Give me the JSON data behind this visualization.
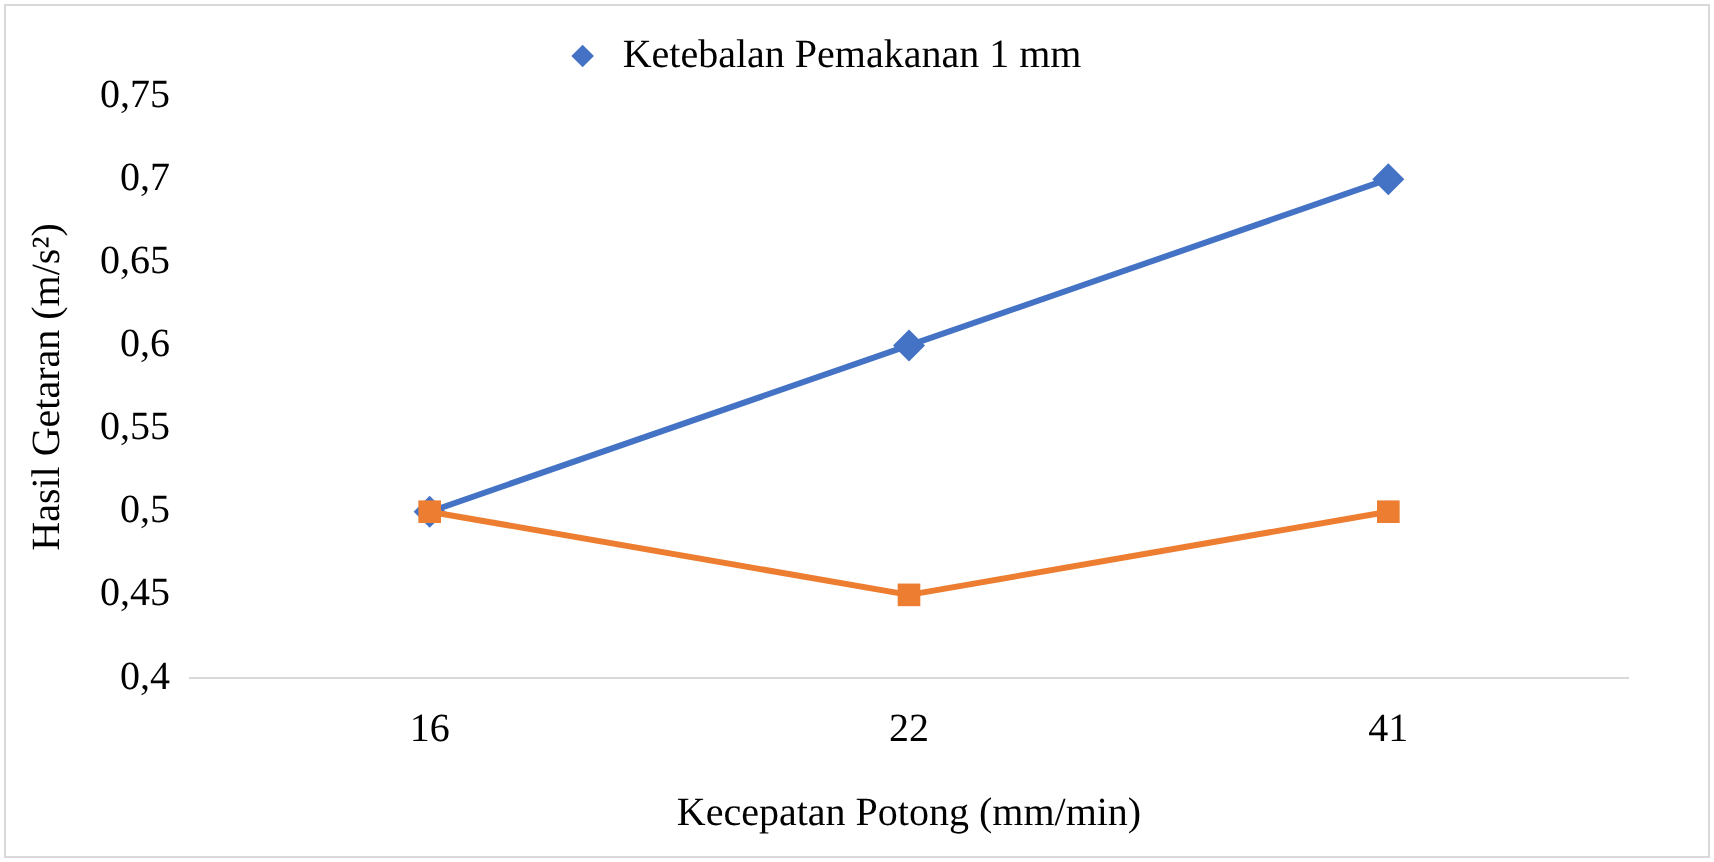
{
  "chart_data": {
    "type": "line",
    "xlabel": "Kecepatan Potong (mm/min)",
    "ylabel": "Hasil Getaran (m/s²)",
    "categories": [
      "16",
      "22",
      "41"
    ],
    "series": [
      {
        "name": "Ketebalan Pemakanan 1 mm",
        "color": "#4472c4",
        "marker": "diamond",
        "values": [
          0.5,
          0.6,
          0.7
        ]
      },
      {
        "color": "#ed7d31",
        "marker": "square",
        "values": [
          0.5,
          0.45,
          0.5
        ]
      }
    ],
    "ylim": [
      0.4,
      0.75
    ],
    "yticks": [
      {
        "value": 0.4,
        "label": "0,4"
      },
      {
        "value": 0.45,
        "label": "0,45"
      },
      {
        "value": 0.5,
        "label": "0,5"
      },
      {
        "value": 0.55,
        "label": "0,55"
      },
      {
        "value": 0.6,
        "label": "0,6"
      },
      {
        "value": 0.65,
        "label": "0,65"
      },
      {
        "value": 0.7,
        "label": "0,7"
      },
      {
        "value": 0.75,
        "label": "0,75"
      }
    ],
    "grid": false,
    "legend": "top",
    "line_style": "solid"
  }
}
